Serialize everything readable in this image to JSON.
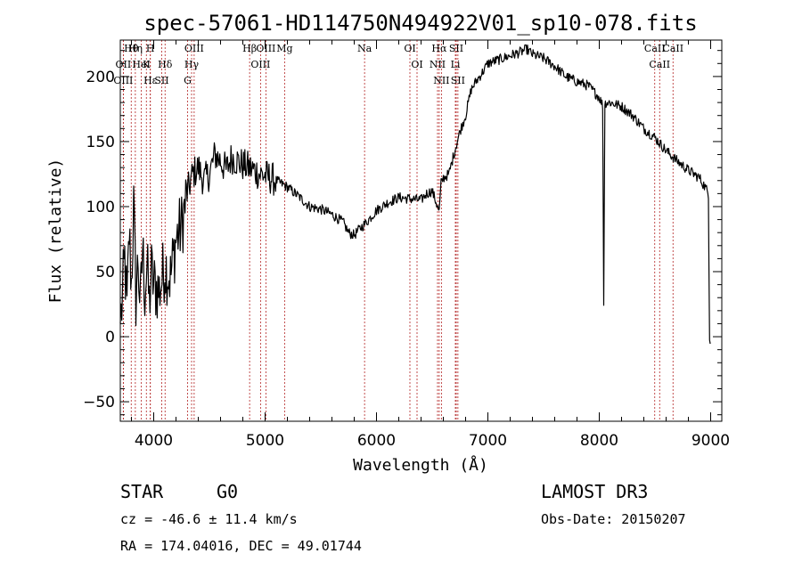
{
  "chart_data": {
    "type": "line",
    "title": "spec-57061-HD114750N494922V01_sp10-078.fits",
    "xlabel": "Wavelength (Å)",
    "ylabel": "Flux (relative)",
    "xlim": [
      3700,
      9100
    ],
    "ylim": [
      -65,
      228
    ],
    "xticks": [
      4000,
      5000,
      6000,
      7000,
      8000,
      9000
    ],
    "yticks": [
      -50,
      0,
      50,
      100,
      150,
      200
    ],
    "series": [
      {
        "name": "flux",
        "x": [
          3700,
          3720,
          3740,
          3760,
          3780,
          3800,
          3820,
          3840,
          3860,
          3880,
          3900,
          3920,
          3940,
          3960,
          3980,
          4000,
          4050,
          4100,
          4150,
          4200,
          4250,
          4300,
          4350,
          4400,
          4450,
          4500,
          4550,
          4600,
          4650,
          4700,
          4750,
          4800,
          4850,
          4900,
          4950,
          5000,
          5100,
          5200,
          5300,
          5400,
          5500,
          5600,
          5700,
          5750,
          5800,
          5850,
          5900,
          5950,
          6000,
          6100,
          6200,
          6300,
          6400,
          6450,
          6500,
          6540,
          6563,
          6580,
          6600,
          6650,
          6700,
          6750,
          6800,
          6850,
          6900,
          6950,
          7000,
          7100,
          7200,
          7300,
          7350,
          7400,
          7500,
          7600,
          7700,
          7800,
          7900,
          8000,
          8030,
          8040,
          8050,
          8060,
          8100,
          8200,
          8300,
          8400,
          8500,
          8600,
          8700,
          8800,
          8900,
          8950,
          8980,
          8990,
          9000
        ],
        "values": [
          10,
          30,
          60,
          20,
          80,
          40,
          100,
          30,
          60,
          20,
          70,
          35,
          55,
          25,
          50,
          40,
          35,
          55,
          45,
          75,
          85,
          110,
          125,
          130,
          120,
          125,
          140,
          135,
          128,
          138,
          135,
          132,
          130,
          128,
          125,
          124,
          120,
          115,
          108,
          100,
          98,
          94,
          88,
          80,
          78,
          83,
          87,
          92,
          97,
          103,
          107,
          106,
          105,
          110,
          112,
          102,
          96,
          118,
          122,
          125,
          142,
          158,
          170,
          190,
          197,
          203,
          210,
          213,
          216,
          219,
          221,
          217,
          214,
          208,
          200,
          196,
          193,
          184,
          178,
          25,
          179,
          180,
          180,
          177,
          170,
          160,
          153,
          143,
          135,
          128,
          122,
          115,
          110,
          0,
          -5
        ]
      }
    ],
    "line_markers": [
      {
        "label": "Hθ",
        "x": 3798
      },
      {
        "label": "OII",
        "x": 3727
      },
      {
        "label": "OIII",
        "x": 3727
      },
      {
        "label": "K",
        "x": 3934
      },
      {
        "label": "H",
        "x": 3969
      },
      {
        "label": "Hε",
        "x": 3970
      },
      {
        "label": "Hη",
        "x": 3835
      },
      {
        "label": "HeI",
        "x": 3889
      },
      {
        "label": "SII",
        "x": 4072
      },
      {
        "label": "Hδ",
        "x": 4102
      },
      {
        "label": "OIII",
        "x": 4363
      },
      {
        "label": "Hγ",
        "x": 4340
      },
      {
        "label": "G",
        "x": 4304
      },
      {
        "label": "Hβ",
        "x": 4861
      },
      {
        "label": "OIII",
        "x": 4959
      },
      {
        "label": "OIII",
        "x": 5007
      },
      {
        "label": "Mg",
        "x": 5175
      },
      {
        "label": "Na",
        "x": 5893
      },
      {
        "label": "OI",
        "x": 6300
      },
      {
        "label": "OI",
        "x": 6364
      },
      {
        "label": "Hα",
        "x": 6563
      },
      {
        "label": "NII",
        "x": 6548
      },
      {
        "label": "NII",
        "x": 6583
      },
      {
        "label": "SII",
        "x": 6716
      },
      {
        "label": "Li",
        "x": 6708
      },
      {
        "label": "SII",
        "x": 6731
      },
      {
        "label": "CaII",
        "x": 8498
      },
      {
        "label": "CaII",
        "x": 8542
      },
      {
        "label": "CaII",
        "x": 8662
      }
    ]
  },
  "info": {
    "class": "STAR",
    "subclass": "G0",
    "survey": "LAMOST DR3",
    "cz": "cz = -46.6 ± 11.4 km/s",
    "obs_date": "Obs-Date: 20150207",
    "radec": "RA = 174.04016, DEC =  49.01744"
  }
}
